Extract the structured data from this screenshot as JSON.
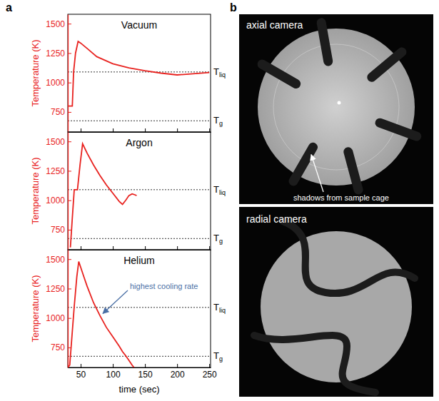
{
  "chart_data": [
    {
      "type": "line",
      "title": "Vacuum",
      "y_label": "Temperature (K)",
      "color": "#e8211e",
      "x": [
        30,
        37,
        39,
        42,
        46,
        50,
        60,
        75,
        100,
        125,
        150,
        175,
        200,
        225,
        250
      ],
      "values": [
        800,
        800,
        1090,
        1250,
        1350,
        1335,
        1290,
        1220,
        1160,
        1125,
        1100,
        1080,
        1065,
        1075,
        1085
      ],
      "xlim": [
        30,
        252
      ],
      "xticks": [
        50,
        100,
        150,
        200,
        250
      ],
      "ylim": [
        580,
        1580
      ],
      "yticks": [
        750,
        1000,
        1250,
        1500
      ],
      "tick_labels": "y",
      "reference_lines": [
        {
          "value": 1090,
          "text": "T",
          "subscript": "liq"
        },
        {
          "value": 675,
          "text": "T",
          "subscript": "g"
        }
      ]
    },
    {
      "type": "line",
      "title": "Argon",
      "y_label": "Temperature (K)",
      "color": "#e8211e",
      "x": [
        34,
        37,
        40,
        45,
        49,
        53,
        60,
        70,
        80,
        90,
        100,
        110,
        115,
        120,
        125,
        130,
        135,
        137
      ],
      "values": [
        600,
        850,
        1090,
        1090,
        1300,
        1480,
        1400,
        1300,
        1210,
        1130,
        1060,
        990,
        965,
        1000,
        1040,
        1055,
        1045,
        1040
      ],
      "xlim": [
        30,
        252
      ],
      "xticks": [
        50,
        100,
        150,
        200,
        250
      ],
      "ylim": [
        580,
        1580
      ],
      "yticks": [
        750,
        1000,
        1250,
        1500
      ],
      "tick_labels": "y",
      "reference_lines": [
        {
          "value": 1090,
          "text": "T",
          "subscript": "liq"
        },
        {
          "value": 675,
          "text": "T",
          "subscript": "g"
        }
      ]
    },
    {
      "type": "line",
      "title": "Helium",
      "y_label": "Temperature (K)",
      "x_label": "time (sec)",
      "color": "#e8211e",
      "x": [
        30,
        33,
        40,
        44,
        47,
        55,
        60,
        70,
        80,
        90,
        100,
        110,
        115,
        120,
        125,
        130,
        133
      ],
      "values": [
        580,
        600,
        1100,
        1350,
        1480,
        1350,
        1270,
        1130,
        1020,
        920,
        840,
        760,
        715,
        680,
        640,
        600,
        580
      ],
      "xlim": [
        30,
        252
      ],
      "xticks": [
        50,
        100,
        150,
        200,
        250
      ],
      "ylim": [
        580,
        1580
      ],
      "yticks": [
        750,
        1000,
        1250,
        1500
      ],
      "reference_lines": [
        {
          "value": 1090,
          "text": "T",
          "subscript": "liq"
        },
        {
          "value": 675,
          "text": "T",
          "subscript": "g"
        }
      ],
      "annotations": [
        {
          "text": "highest cooling rate"
        }
      ]
    }
  ],
  "panel_labels": [
    "a",
    "b"
  ],
  "images": [
    {
      "label": "axial camera",
      "annotation": "shadows from sample cage"
    },
    {
      "label": "radial camera"
    }
  ]
}
